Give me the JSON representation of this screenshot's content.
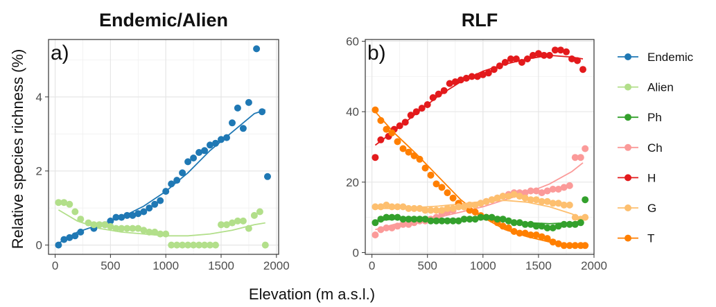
{
  "figure": {
    "shared_xlabel": "Elevation (m a.s.l.)",
    "shared_ylabel": "Relative species richness (%)"
  },
  "legend": [
    {
      "name": "Endemic",
      "color": "#1f78b4"
    },
    {
      "name": "Alien",
      "color": "#b2df8a"
    },
    {
      "name": "Ph",
      "color": "#33a02c"
    },
    {
      "name": "Ch",
      "color": "#fb9a99"
    },
    {
      "name": "H",
      "color": "#e31a1c"
    },
    {
      "name": "G",
      "color": "#fdbf6f"
    },
    {
      "name": "T",
      "color": "#ff7f00"
    }
  ],
  "chart_data": [
    {
      "type": "scatter",
      "title": "Endemic/Alien",
      "panel_tag": "a)",
      "xlim": [
        -60,
        2020
      ],
      "ylim": [
        -0.25,
        5.55
      ],
      "xticks": [
        0,
        500,
        1000,
        1500,
        2000
      ],
      "yticks": [
        0,
        2,
        4
      ],
      "grid": true,
      "series": [
        {
          "name": "Endemic",
          "color": "#1f78b4",
          "x": [
            30,
            80,
            130,
            180,
            230,
            350,
            450,
            500,
            550,
            600,
            650,
            700,
            750,
            800,
            850,
            900,
            950,
            1000,
            1050,
            1100,
            1150,
            1200,
            1250,
            1300,
            1350,
            1400,
            1450,
            1500,
            1550,
            1600,
            1650,
            1700,
            1750,
            1820,
            1870,
            1920
          ],
          "y": [
            0.0,
            0.15,
            0.2,
            0.25,
            0.35,
            0.45,
            0.55,
            0.65,
            0.75,
            0.75,
            0.8,
            0.8,
            0.85,
            0.9,
            1.0,
            1.1,
            1.2,
            1.45,
            1.65,
            1.75,
            1.95,
            2.25,
            2.35,
            2.5,
            2.55,
            2.7,
            2.75,
            2.85,
            2.9,
            3.3,
            3.7,
            3.15,
            3.85,
            5.3,
            3.6,
            1.85
          ]
        },
        {
          "name": "Alien",
          "color": "#b2df8a",
          "x": [
            30,
            80,
            130,
            180,
            230,
            300,
            350,
            400,
            450,
            500,
            550,
            600,
            650,
            700,
            750,
            800,
            850,
            900,
            950,
            1000,
            1050,
            1100,
            1150,
            1200,
            1250,
            1300,
            1350,
            1400,
            1450,
            1500,
            1550,
            1600,
            1650,
            1700,
            1750,
            1800,
            1850,
            1900
          ],
          "y": [
            1.15,
            1.15,
            1.1,
            0.9,
            0.7,
            0.6,
            0.55,
            0.55,
            0.55,
            0.5,
            0.45,
            0.45,
            0.45,
            0.45,
            0.45,
            0.4,
            0.35,
            0.35,
            0.3,
            0.3,
            0.0,
            0.0,
            0.0,
            0.0,
            0.0,
            0.0,
            0.0,
            0.0,
            0.0,
            0.55,
            0.55,
            0.6,
            0.65,
            0.65,
            0.45,
            0.8,
            0.9,
            0.0
          ]
        }
      ],
      "fits": [
        {
          "name": "Endemic",
          "color": "#1f78b4",
          "x": [
            30,
            200,
            400,
            600,
            800,
            1000,
            1200,
            1400,
            1600,
            1800,
            1900
          ],
          "y": [
            0.05,
            0.35,
            0.55,
            0.75,
            1.05,
            1.45,
            1.95,
            2.55,
            3.05,
            3.55,
            3.65
          ]
        },
        {
          "name": "Alien",
          "color": "#b2df8a",
          "x": [
            30,
            200,
            400,
            600,
            800,
            1000,
            1200,
            1400,
            1600,
            1800,
            1900
          ],
          "y": [
            0.95,
            0.65,
            0.45,
            0.35,
            0.3,
            0.25,
            0.25,
            0.3,
            0.4,
            0.55,
            0.6
          ]
        }
      ]
    },
    {
      "type": "scatter",
      "title": "RLF",
      "panel_tag": "b)",
      "xlim": [
        -60,
        2000
      ],
      "ylim": [
        -0.5,
        60.5
      ],
      "xticks": [
        0,
        500,
        1000,
        1500,
        2000
      ],
      "yticks": [
        0,
        20,
        40,
        60
      ],
      "grid": true,
      "series": [
        {
          "name": "H",
          "color": "#e31a1c",
          "x": [
            30,
            80,
            150,
            200,
            250,
            300,
            350,
            400,
            450,
            500,
            550,
            600,
            650,
            700,
            750,
            800,
            850,
            900,
            950,
            1000,
            1050,
            1100,
            1150,
            1200,
            1250,
            1300,
            1350,
            1400,
            1450,
            1500,
            1550,
            1600,
            1650,
            1700,
            1750,
            1800,
            1850,
            1900
          ],
          "y": [
            27,
            32,
            33,
            35,
            36,
            37,
            39,
            40,
            41,
            42,
            44,
            45,
            46,
            48,
            48.5,
            49,
            49.5,
            50,
            50,
            50.5,
            51,
            52,
            53,
            54,
            55,
            55,
            54,
            55,
            56,
            56.5,
            56,
            56,
            57.5,
            57.5,
            57,
            55,
            54.5,
            52
          ]
        },
        {
          "name": "T",
          "color": "#ff7f00",
          "x": [
            30,
            80,
            130,
            180,
            230,
            280,
            330,
            380,
            430,
            480,
            530,
            580,
            630,
            680,
            730,
            780,
            830,
            880,
            930,
            980,
            1030,
            1080,
            1130,
            1180,
            1230,
            1280,
            1330,
            1380,
            1430,
            1480,
            1530,
            1580,
            1630,
            1680,
            1730,
            1780,
            1830,
            1880,
            1920
          ],
          "y": [
            40.5,
            37.5,
            35,
            34,
            31.5,
            29.5,
            28.5,
            27.5,
            26.5,
            24,
            22,
            19.5,
            18.5,
            17,
            15.5,
            14,
            13,
            12,
            11.5,
            10.5,
            10,
            9.5,
            8.5,
            7.5,
            7,
            6,
            5.5,
            5.5,
            5,
            5,
            4.5,
            4,
            3,
            2.5,
            2,
            2,
            2,
            2,
            2
          ]
        },
        {
          "name": "Ch",
          "color": "#fb9a99",
          "x": [
            30,
            80,
            130,
            180,
            230,
            280,
            330,
            380,
            430,
            480,
            530,
            580,
            630,
            680,
            730,
            780,
            830,
            880,
            930,
            980,
            1030,
            1080,
            1130,
            1180,
            1230,
            1280,
            1330,
            1380,
            1430,
            1480,
            1530,
            1580,
            1630,
            1680,
            1730,
            1780,
            1830,
            1880,
            1920
          ],
          "y": [
            5,
            6.5,
            7,
            7,
            7.5,
            8,
            8,
            8.5,
            9,
            9,
            9.5,
            10,
            11,
            11.5,
            12,
            13,
            13,
            13.5,
            13.5,
            14,
            14.5,
            15,
            15.5,
            16,
            16.5,
            17,
            17,
            17,
            17.5,
            17.5,
            17,
            17.5,
            18,
            18,
            18.5,
            19,
            27,
            27,
            29.5
          ]
        },
        {
          "name": "G",
          "color": "#fdbf6f",
          "x": [
            30,
            80,
            130,
            180,
            230,
            280,
            330,
            380,
            430,
            480,
            530,
            580,
            630,
            680,
            730,
            780,
            830,
            880,
            930,
            980,
            1030,
            1080,
            1130,
            1180,
            1230,
            1280,
            1330,
            1380,
            1430,
            1480,
            1530,
            1580,
            1630,
            1680,
            1730,
            1780,
            1830,
            1880,
            1920
          ],
          "y": [
            13,
            13,
            13.5,
            13,
            13,
            13,
            12.5,
            12.5,
            12.5,
            12,
            12,
            12,
            12,
            12.5,
            12.5,
            13,
            13,
            13.5,
            13.5,
            14,
            14.5,
            15,
            15.5,
            16,
            16,
            16.5,
            16,
            15.5,
            15,
            15,
            14.5,
            14.5,
            14,
            14,
            13.5,
            13.5,
            10,
            9.5,
            10
          ]
        },
        {
          "name": "Ph",
          "color": "#33a02c",
          "x": [
            30,
            80,
            130,
            180,
            230,
            280,
            330,
            380,
            430,
            480,
            530,
            580,
            630,
            680,
            730,
            780,
            830,
            880,
            930,
            980,
            1030,
            1080,
            1130,
            1180,
            1230,
            1280,
            1330,
            1380,
            1430,
            1480,
            1530,
            1580,
            1630,
            1680,
            1730,
            1780,
            1830,
            1880,
            1920
          ],
          "y": [
            8.5,
            9.5,
            10,
            10,
            10,
            9.5,
            9.5,
            9.5,
            9.5,
            9.5,
            9,
            9,
            9,
            9,
            9,
            9,
            9.5,
            9.5,
            9.5,
            10,
            10,
            10,
            9.5,
            9.5,
            9,
            8.5,
            8.5,
            8,
            8,
            7.5,
            7.5,
            7,
            7,
            7.5,
            8,
            8,
            8,
            8.5,
            15
          ]
        }
      ],
      "fits": [
        {
          "name": "H",
          "color": "#e31a1c",
          "x": [
            30,
            200,
            400,
            600,
            800,
            1000,
            1200,
            1400,
            1600,
            1800,
            1900
          ],
          "y": [
            30.5,
            34.5,
            39.5,
            44.5,
            48.5,
            51.5,
            53.5,
            55,
            56,
            55.5,
            55
          ]
        },
        {
          "name": "T",
          "color": "#ff7f00",
          "x": [
            30,
            200,
            400,
            600,
            800,
            1000,
            1200,
            1400,
            1600,
            1800,
            1900
          ],
          "y": [
            40,
            34,
            28,
            21.5,
            15,
            10,
            6.5,
            4.5,
            3,
            2,
            2
          ]
        },
        {
          "name": "Ch",
          "color": "#fb9a99",
          "x": [
            30,
            200,
            400,
            600,
            800,
            1000,
            1200,
            1400,
            1600,
            1800,
            1900
          ],
          "y": [
            6.5,
            8,
            9,
            10,
            11.5,
            13,
            15,
            17,
            19.5,
            23,
            25.5
          ]
        },
        {
          "name": "G",
          "color": "#fdbf6f",
          "x": [
            30,
            200,
            400,
            600,
            800,
            1000,
            1200,
            1400,
            1600,
            1800,
            1900
          ],
          "y": [
            12.5,
            12.5,
            12.8,
            13.2,
            13.8,
            14.5,
            14.8,
            14.3,
            13,
            11,
            9.5
          ]
        },
        {
          "name": "Ph",
          "color": "#33a02c",
          "x": [
            30,
            200,
            400,
            600,
            800,
            1000,
            1200,
            1400,
            1600,
            1800,
            1900
          ],
          "y": [
            9,
            9.5,
            9.6,
            9.5,
            9.5,
            9.5,
            9,
            8.5,
            8.2,
            8.5,
            9
          ]
        }
      ]
    }
  ]
}
